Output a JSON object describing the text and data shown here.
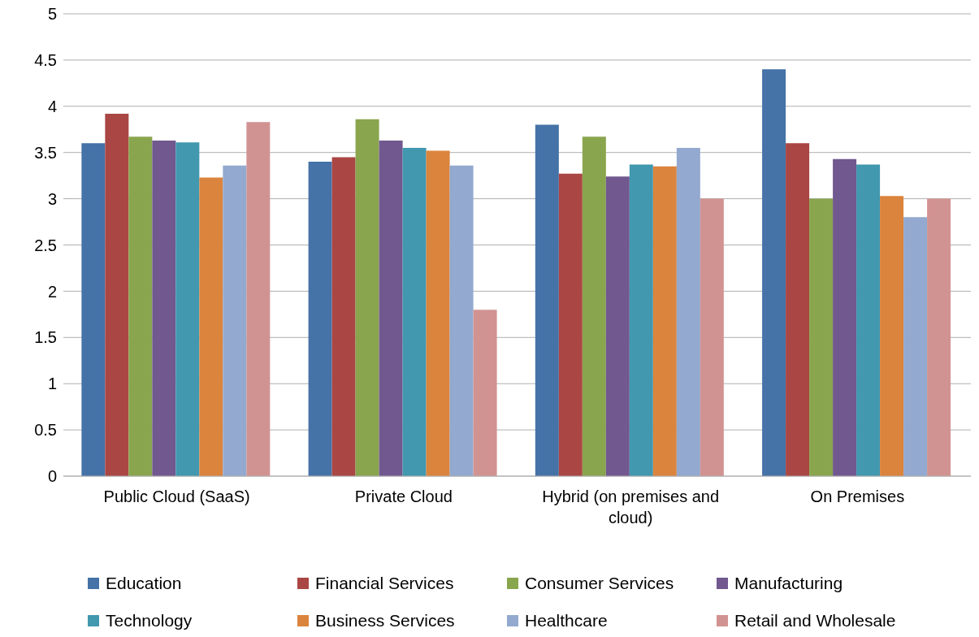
{
  "chart_data": {
    "type": "bar",
    "categories": [
      "Public Cloud (SaaS)",
      "Private Cloud",
      "Hybrid (on premises and cloud)",
      "On Premises"
    ],
    "series": [
      {
        "name": "Education",
        "color": "#4572a7",
        "values": [
          3.6,
          3.4,
          3.8,
          4.4
        ]
      },
      {
        "name": "Financial Services",
        "color": "#aa4643",
        "values": [
          3.92,
          3.45,
          3.27,
          3.6
        ]
      },
      {
        "name": "Consumer Services",
        "color": "#89a54e",
        "values": [
          3.67,
          3.86,
          3.67,
          3.0
        ]
      },
      {
        "name": "Manufacturing",
        "color": "#71588f",
        "values": [
          3.63,
          3.63,
          3.24,
          3.43
        ]
      },
      {
        "name": "Technology",
        "color": "#4198af",
        "values": [
          3.61,
          3.55,
          3.37,
          3.37
        ]
      },
      {
        "name": "Business Services",
        "color": "#db843d",
        "values": [
          3.23,
          3.52,
          3.35,
          3.03
        ]
      },
      {
        "name": "Healthcare",
        "color": "#93a9cf",
        "values": [
          3.36,
          3.36,
          3.55,
          2.8
        ]
      },
      {
        "name": "Retail and Wholesale",
        "color": "#d19392",
        "values": [
          3.83,
          1.8,
          3.0,
          3.0
        ]
      }
    ],
    "ylim": [
      0,
      5
    ],
    "yticks": [
      0,
      0.5,
      1,
      1.5,
      2,
      2.5,
      3,
      3.5,
      4,
      4.5,
      5
    ],
    "grid": "y",
    "legend": "bottom"
  }
}
